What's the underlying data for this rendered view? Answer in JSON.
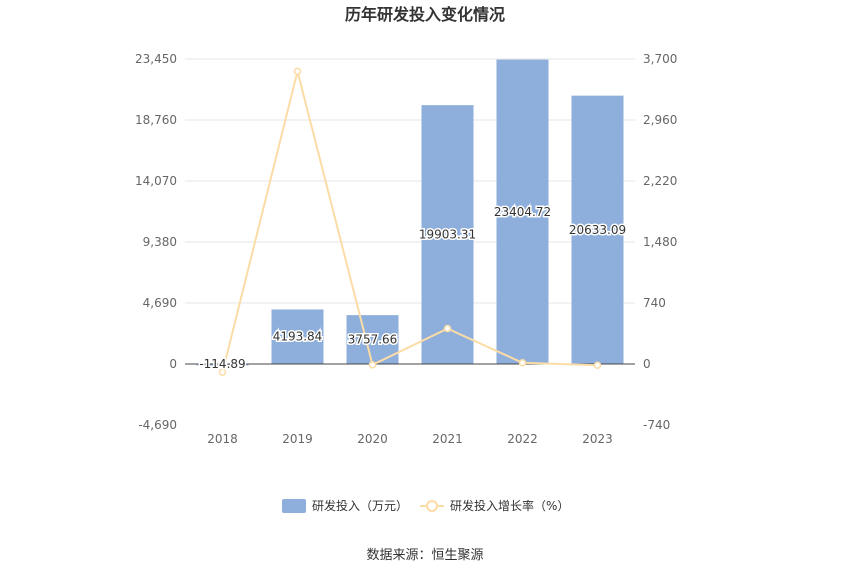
{
  "chart_data": {
    "type": "bar",
    "title": "历年研发投入变化情况",
    "categories": [
      "2018",
      "2019",
      "2020",
      "2021",
      "2022",
      "2023"
    ],
    "series": [
      {
        "name": "研发投入（万元）",
        "type": "bar",
        "axis": "left",
        "color": "#8eaedb",
        "values": [
          -114.89,
          4193.84,
          3757.66,
          19903.31,
          23404.72,
          20633.09
        ],
        "labels": [
          "-114.89",
          "4193.84",
          "3757.66",
          "19903.31",
          "23404.72",
          "20633.09"
        ]
      },
      {
        "name": "研发投入增长率（%）",
        "type": "line",
        "axis": "right",
        "color": "#fbdca6",
        "values": [
          -100,
          3550,
          -10,
          430,
          15,
          -15
        ]
      }
    ],
    "yaxis_left": {
      "ylim": [
        -4690,
        23450
      ],
      "ticks": [
        "-4,690",
        "0",
        "4,690",
        "9,380",
        "14,070",
        "18,760",
        "23,450"
      ]
    },
    "yaxis_right": {
      "ylim": [
        -740,
        3700
      ],
      "ticks": [
        "-740",
        "0",
        "740",
        "1,480",
        "2,220",
        "2,960",
        "3,700"
      ]
    },
    "grid": true,
    "legend": "bottom-center"
  },
  "source": "数据来源：恒生聚源"
}
